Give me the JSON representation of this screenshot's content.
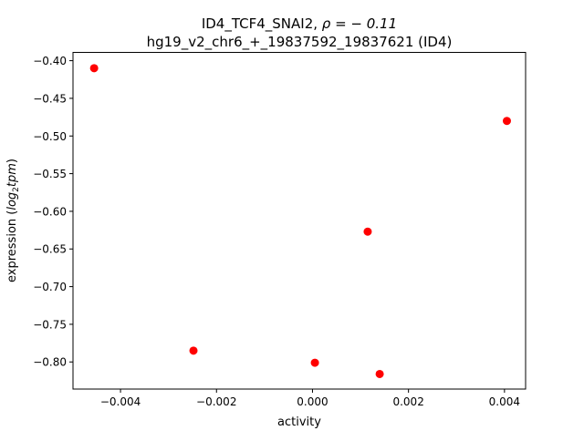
{
  "chart_data": {
    "type": "scatter",
    "title_line1_prefix": "ID4_TCF4_SNAI2, ",
    "title_line1_rho": "ρ = − 0.11",
    "title_line2": "hg19_v2_chr6_+_19837592_19837621 (ID4)",
    "xlabel": "activity",
    "ylabel_prefix": "expression (",
    "ylabel_math": "log",
    "ylabel_sub": "2",
    "ylabel_math2": "tpm",
    "ylabel_suffix": ")",
    "xlim": [
      -0.00499,
      0.00444
    ],
    "ylim": [
      -0.836,
      -0.389
    ],
    "xticks": [
      -0.004,
      -0.002,
      0.0,
      0.002,
      0.004
    ],
    "xtick_labels": [
      "−0.004",
      "−0.002",
      "0.000",
      "0.002",
      "0.004"
    ],
    "yticks": [
      -0.4,
      -0.45,
      -0.5,
      -0.55,
      -0.6,
      -0.65,
      -0.7,
      -0.75,
      -0.8
    ],
    "ytick_labels": [
      "−0.40",
      "−0.45",
      "−0.50",
      "−0.55",
      "−0.60",
      "−0.65",
      "−0.70",
      "−0.75",
      "−0.80"
    ],
    "grid": false,
    "marker_color": "#ff0000",
    "points": [
      {
        "x": -0.00455,
        "y": -0.41
      },
      {
        "x": 0.00405,
        "y": -0.48
      },
      {
        "x": 0.00115,
        "y": -0.627
      },
      {
        "x": -0.00248,
        "y": -0.785
      },
      {
        "x": 5e-05,
        "y": -0.801
      },
      {
        "x": 0.0014,
        "y": -0.816
      }
    ]
  }
}
